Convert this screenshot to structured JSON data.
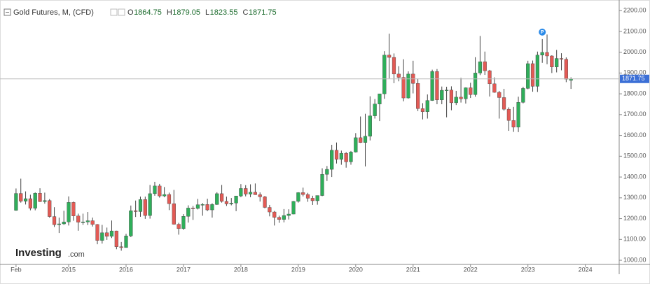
{
  "chart_data": {
    "type": "candlestick",
    "title": "Gold Futures, M, (CFD)",
    "ohlc_labels": [
      "O",
      "H",
      "L",
      "C"
    ],
    "logo": [
      "Investing",
      ".com"
    ],
    "marker": {
      "x": "2023-04",
      "label": "P",
      "color": "#2a8ae8"
    },
    "up_color": "#2fae5a",
    "down_color": "#e35a55",
    "x": [
      "2014-02",
      "2014-03",
      "2014-04",
      "2014-05",
      "2014-06",
      "2014-07",
      "2014-08",
      "2014-09",
      "2014-10",
      "2014-11",
      "2014-12",
      "2015-01",
      "2015-02",
      "2015-03",
      "2015-04",
      "2015-05",
      "2015-06",
      "2015-07",
      "2015-08",
      "2015-09",
      "2015-10",
      "2015-11",
      "2015-12",
      "2016-01",
      "2016-02",
      "2016-03",
      "2016-04",
      "2016-05",
      "2016-06",
      "2016-07",
      "2016-08",
      "2016-09",
      "2016-10",
      "2016-11",
      "2016-12",
      "2017-01",
      "2017-02",
      "2017-03",
      "2017-04",
      "2017-05",
      "2017-06",
      "2017-07",
      "2017-08",
      "2017-09",
      "2017-10",
      "2017-11",
      "2017-12",
      "2018-01",
      "2018-02",
      "2018-03",
      "2018-04",
      "2018-05",
      "2018-06",
      "2018-07",
      "2018-08",
      "2018-09",
      "2018-10",
      "2018-11",
      "2018-12",
      "2019-01",
      "2019-02",
      "2019-03",
      "2019-04",
      "2019-05",
      "2019-06",
      "2019-07",
      "2019-08",
      "2019-09",
      "2019-10",
      "2019-11",
      "2019-12",
      "2020-01",
      "2020-02",
      "2020-03",
      "2020-04",
      "2020-05",
      "2020-06",
      "2020-07",
      "2020-08",
      "2020-09",
      "2020-10",
      "2020-11",
      "2020-12",
      "2021-01",
      "2021-02",
      "2021-03",
      "2021-04",
      "2021-05",
      "2021-06",
      "2021-07",
      "2021-08",
      "2021-09",
      "2021-10",
      "2021-11",
      "2021-12",
      "2022-01",
      "2022-02",
      "2022-03",
      "2022-04",
      "2022-05",
      "2022-06",
      "2022-07",
      "2022-08",
      "2022-09",
      "2022-10",
      "2022-11",
      "2022-12",
      "2023-01",
      "2023-02",
      "2023-03",
      "2023-04",
      "2023-05",
      "2023-06",
      "2023-07",
      "2023-08",
      "2023-09",
      "2023-10"
    ],
    "open": [
      1240,
      1321,
      1284,
      1296,
      1250,
      1322,
      1282,
      1287,
      1210,
      1171,
      1175,
      1184,
      1278,
      1213,
      1183,
      1184,
      1190,
      1172,
      1095,
      1132,
      1115,
      1141,
      1065,
      1061,
      1117,
      1238,
      1234,
      1292,
      1215,
      1320,
      1357,
      1309,
      1316,
      1272,
      1173,
      1152,
      1211,
      1251,
      1249,
      1267,
      1268,
      1242,
      1268,
      1320,
      1283,
      1271,
      1275,
      1309,
      1345,
      1318,
      1327,
      1315,
      1305,
      1254,
      1232,
      1206,
      1196,
      1215,
      1222,
      1283,
      1325,
      1316,
      1298,
      1286,
      1311,
      1413,
      1437,
      1529,
      1485,
      1514,
      1473,
      1520,
      1589,
      1566,
      1596,
      1694,
      1751,
      1800,
      1986,
      1975,
      1895,
      1879,
      1780,
      1895,
      1850,
      1729,
      1714,
      1768,
      1907,
      1771,
      1817,
      1818,
      1757,
      1784,
      1776,
      1829,
      1796,
      1900,
      1954,
      1911,
      1848,
      1807,
      1782,
      1726,
      1672,
      1640,
      1759,
      1826,
      1945,
      1836,
      1986,
      1999,
      1982,
      1929,
      1970,
      1966,
      1864.75
    ],
    "high": [
      1345,
      1392,
      1331,
      1315,
      1326,
      1346,
      1325,
      1294,
      1255,
      1205,
      1238,
      1307,
      1282,
      1224,
      1224,
      1232,
      1205,
      1174,
      1170,
      1157,
      1191,
      1142,
      1088,
      1127,
      1263,
      1287,
      1306,
      1306,
      1362,
      1377,
      1367,
      1352,
      1325,
      1338,
      1180,
      1222,
      1264,
      1261,
      1295,
      1275,
      1296,
      1274,
      1327,
      1362,
      1306,
      1299,
      1309,
      1366,
      1361,
      1365,
      1369,
      1326,
      1309,
      1266,
      1237,
      1214,
      1246,
      1245,
      1285,
      1327,
      1349,
      1324,
      1310,
      1311,
      1442,
      1453,
      1555,
      1566,
      1527,
      1520,
      1525,
      1611,
      1691,
      1704,
      1788,
      1775,
      1800,
      2005,
      2089,
      1994,
      1933,
      1966,
      1908,
      1959,
      1873,
      1755,
      1797,
      1916,
      1919,
      1835,
      1834,
      1836,
      1814,
      1877,
      1831,
      1853,
      1976,
      2078,
      2003,
      1915,
      1879,
      1814,
      1824,
      1735,
      1737,
      1786,
      1834,
      1959,
      1960,
      2003,
      2063,
      2085,
      1985,
      2011,
      1995,
      1975,
      1879.05
    ],
    "low": [
      1238,
      1277,
      1268,
      1240,
      1240,
      1280,
      1272,
      1205,
      1160,
      1131,
      1170,
      1167,
      1190,
      1142,
      1170,
      1169,
      1162,
      1077,
      1080,
      1098,
      1107,
      1053,
      1046,
      1061,
      1111,
      1208,
      1209,
      1199,
      1200,
      1310,
      1301,
      1303,
      1241,
      1171,
      1123,
      1146,
      1181,
      1194,
      1244,
      1214,
      1236,
      1205,
      1266,
      1277,
      1261,
      1264,
      1236,
      1303,
      1307,
      1303,
      1314,
      1282,
      1250,
      1211,
      1167,
      1180,
      1182,
      1196,
      1221,
      1277,
      1307,
      1281,
      1266,
      1267,
      1308,
      1381,
      1400,
      1465,
      1459,
      1445,
      1459,
      1518,
      1564,
      1451,
      1576,
      1681,
      1669,
      1776,
      1874,
      1851,
      1860,
      1764,
      1777,
      1802,
      1717,
      1677,
      1681,
      1766,
      1750,
      1750,
      1687,
      1721,
      1746,
      1758,
      1753,
      1780,
      1786,
      1890,
      1891,
      1787,
      1805,
      1681,
      1719,
      1622,
      1617,
      1616,
      1754,
      1822,
      1810,
      1809,
      1949,
      1942,
      1900,
      1903,
      1913,
      1856,
      1823.55
    ],
    "close": [
      1321,
      1284,
      1296,
      1250,
      1322,
      1282,
      1287,
      1210,
      1171,
      1175,
      1184,
      1278,
      1213,
      1183,
      1184,
      1190,
      1172,
      1095,
      1132,
      1115,
      1141,
      1065,
      1061,
      1117,
      1238,
      1234,
      1292,
      1215,
      1320,
      1357,
      1309,
      1316,
      1272,
      1173,
      1152,
      1211,
      1251,
      1249,
      1267,
      1268,
      1242,
      1268,
      1320,
      1283,
      1271,
      1275,
      1309,
      1345,
      1318,
      1327,
      1315,
      1305,
      1254,
      1232,
      1206,
      1196,
      1215,
      1222,
      1283,
      1325,
      1316,
      1298,
      1286,
      1311,
      1413,
      1437,
      1529,
      1485,
      1514,
      1473,
      1520,
      1589,
      1566,
      1596,
      1694,
      1751,
      1800,
      1986,
      1975,
      1895,
      1879,
      1780,
      1895,
      1850,
      1729,
      1714,
      1768,
      1907,
      1771,
      1817,
      1818,
      1757,
      1784,
      1776,
      1829,
      1796,
      1900,
      1954,
      1911,
      1848,
      1807,
      1782,
      1726,
      1672,
      1640,
      1759,
      1826,
      1945,
      1836,
      1986,
      1999,
      1982,
      1929,
      1970,
      1966,
      1870,
      1871.75
    ],
    "ylim": [
      980,
      2224
    ],
    "yticks": [
      {
        "value": 1000,
        "label": "1000.00"
      },
      {
        "value": 1100,
        "label": "1100.00"
      },
      {
        "value": 1200,
        "label": "1200.00"
      },
      {
        "value": 1300,
        "label": "1300.00"
      },
      {
        "value": 1400,
        "label": "1400.00"
      },
      {
        "value": 1500,
        "label": "1500.00"
      },
      {
        "value": 1600,
        "label": "1600.00"
      },
      {
        "value": 1700,
        "label": "1700.00"
      },
      {
        "value": 1800,
        "label": "1800.00"
      },
      {
        "value": 1900,
        "label": "1900.00"
      },
      {
        "value": 2000,
        "label": "2000.00"
      },
      {
        "value": 2100,
        "label": "2100.00"
      },
      {
        "value": 2200,
        "label": "2200.00"
      }
    ],
    "xticks": [
      {
        "value": "2014-02",
        "label": "Feb"
      },
      {
        "value": "2015-01",
        "label": "2015"
      },
      {
        "value": "2016-01",
        "label": "2016"
      },
      {
        "value": "2017-01",
        "label": "2017"
      },
      {
        "value": "2018-01",
        "label": "2018"
      },
      {
        "value": "2019-01",
        "label": "2019"
      },
      {
        "value": "2020-01",
        "label": "2020"
      },
      {
        "value": "2021-01",
        "label": "2021"
      },
      {
        "value": "2022-01",
        "label": "2022"
      },
      {
        "value": "2023-01",
        "label": "2023"
      },
      {
        "value": "2024-01",
        "label": "2024"
      }
    ]
  }
}
